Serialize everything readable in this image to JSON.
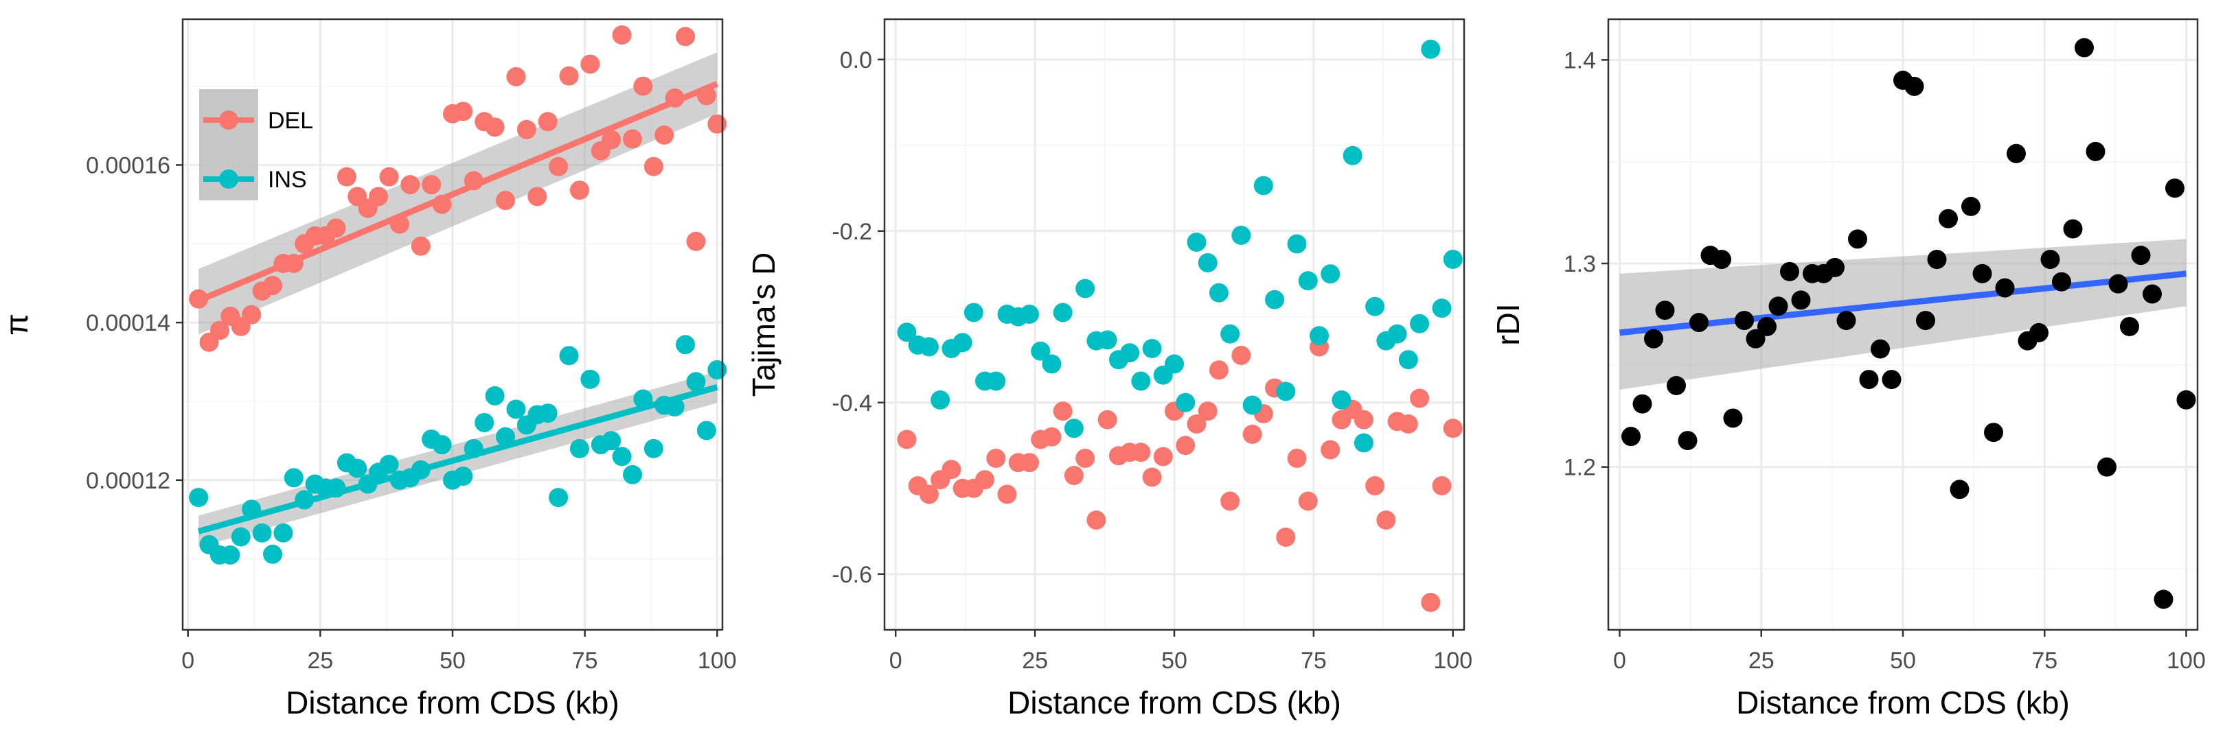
{
  "chart_data": [
    {
      "type": "scatter",
      "xlabel": "Distance from CDS (kb)",
      "ylabel": "π",
      "xlim": [
        -1,
        101
      ],
      "ylim": [
        0.000101,
        0.0001785
      ],
      "x_ticks": [
        0,
        25,
        50,
        75,
        100
      ],
      "x_tick_labels": [
        "0",
        "25",
        "50",
        "75",
        "100"
      ],
      "y_ticks": [
        0.00012,
        0.00014,
        0.00016
      ],
      "y_tick_labels": [
        "0.00012",
        "0.00014",
        "0.00016"
      ],
      "grid": true,
      "legend_position": "top-left",
      "legend": [
        {
          "label": "DEL",
          "color": "#F8766D"
        },
        {
          "label": "INS",
          "color": "#00BFC4"
        }
      ],
      "series": [
        {
          "name": "DEL",
          "color": "#F8766D",
          "x": [
            2,
            4,
            6,
            8,
            10,
            12,
            14,
            16,
            18,
            20,
            22,
            24,
            26,
            28,
            30,
            32,
            34,
            36,
            38,
            40,
            42,
            44,
            46,
            48,
            50,
            52,
            54,
            56,
            58,
            60,
            62,
            64,
            66,
            68,
            70,
            72,
            74,
            76,
            78,
            80,
            82,
            84,
            86,
            88,
            90,
            92,
            94,
            96,
            98,
            100
          ],
          "y": [
            0.000143,
            0.0001375,
            0.000139,
            0.0001408,
            0.0001395,
            0.000141,
            0.000144,
            0.0001447,
            0.0001475,
            0.0001475,
            0.00015,
            0.000151,
            0.000151,
            0.000152,
            0.0001585,
            0.000156,
            0.0001545,
            0.000156,
            0.0001585,
            0.0001525,
            0.0001575,
            0.0001497,
            0.0001575,
            0.000155,
            0.0001665,
            0.0001668,
            0.000158,
            0.0001655,
            0.0001648,
            0.0001555,
            0.0001712,
            0.0001645,
            0.000156,
            0.0001655,
            0.0001598,
            0.0001713,
            0.0001568,
            0.0001728,
            0.0001618,
            0.0001632,
            0.0001765,
            0.0001633,
            0.00017,
            0.0001598,
            0.0001638,
            0.0001685,
            0.0001763,
            0.0001503,
            0.0001688,
            0.0001652
          ],
          "trend": {
            "x": [
              2,
              100
            ],
            "y": [
              0.0001428,
              0.0001703
            ],
            "ci_low": [
              0.0001385,
              0.0001665
            ],
            "ci_high": [
              0.0001468,
              0.0001743
            ]
          }
        },
        {
          "name": "INS",
          "color": "#00BFC4",
          "x": [
            2,
            4,
            6,
            8,
            10,
            12,
            14,
            16,
            18,
            20,
            22,
            24,
            26,
            28,
            30,
            32,
            34,
            36,
            38,
            40,
            42,
            44,
            46,
            48,
            50,
            52,
            54,
            56,
            58,
            60,
            62,
            64,
            66,
            68,
            70,
            72,
            74,
            76,
            78,
            80,
            82,
            84,
            86,
            88,
            90,
            92,
            94,
            96,
            98,
            100
          ],
          "y": [
            0.0001178,
            0.0001118,
            0.0001105,
            0.0001105,
            0.0001128,
            0.0001163,
            0.0001133,
            0.0001106,
            0.0001133,
            0.0001203,
            0.0001175,
            0.0001195,
            0.000119,
            0.000119,
            0.0001222,
            0.0001215,
            0.0001195,
            0.000121,
            0.000122,
            0.00012,
            0.0001203,
            0.0001213,
            0.0001252,
            0.0001245,
            0.00012,
            0.0001205,
            0.000124,
            0.0001273,
            0.0001307,
            0.0001255,
            0.000129,
            0.000127,
            0.0001283,
            0.0001285,
            0.0001178,
            0.0001358,
            0.000124,
            0.0001328,
            0.0001245,
            0.000125,
            0.000123,
            0.0001207,
            0.0001303,
            0.000124,
            0.0001295,
            0.0001293,
            0.0001372,
            0.0001325,
            0.0001263,
            0.000134
          ],
          "trend": {
            "x": [
              2,
              100
            ],
            "y": [
              0.0001135,
              0.0001318
            ],
            "ci_low": [
              0.0001115,
              0.0001298
            ],
            "ci_high": [
              0.0001155,
              0.0001338
            ]
          }
        }
      ]
    },
    {
      "type": "scatter",
      "xlabel": "Distance from CDS (kb)",
      "ylabel": "Tajima's D",
      "xlim": [
        -2,
        102
      ],
      "ylim": [
        -0.665,
        0.047
      ],
      "x_ticks": [
        0,
        25,
        50,
        75,
        100
      ],
      "x_tick_labels": [
        "0",
        "25",
        "50",
        "75",
        "100"
      ],
      "y_ticks": [
        0.0,
        -0.2,
        -0.4,
        -0.6
      ],
      "y_tick_labels": [
        "0.0",
        "-0.2",
        "-0.4",
        "-0.6"
      ],
      "grid": true,
      "series": [
        {
          "name": "DEL",
          "color": "#F8766D",
          "x": [
            2,
            4,
            6,
            8,
            10,
            12,
            14,
            16,
            18,
            20,
            22,
            24,
            26,
            28,
            30,
            32,
            34,
            36,
            38,
            40,
            42,
            44,
            46,
            48,
            50,
            52,
            54,
            56,
            58,
            60,
            62,
            64,
            66,
            68,
            70,
            72,
            74,
            76,
            78,
            80,
            82,
            84,
            86,
            88,
            90,
            92,
            94,
            96,
            98,
            100
          ],
          "y": [
            -0.443,
            -0.497,
            -0.507,
            -0.49,
            -0.478,
            -0.5,
            -0.5,
            -0.49,
            -0.465,
            -0.507,
            -0.47,
            -0.47,
            -0.443,
            -0.44,
            -0.41,
            -0.485,
            -0.465,
            -0.537,
            -0.42,
            -0.462,
            -0.458,
            -0.458,
            -0.487,
            -0.463,
            -0.41,
            -0.45,
            -0.425,
            -0.41,
            -0.362,
            -0.515,
            -0.345,
            -0.437,
            -0.413,
            -0.383,
            -0.557,
            -0.465,
            -0.515,
            -0.335,
            -0.455,
            -0.42,
            -0.408,
            -0.42,
            -0.497,
            -0.537,
            -0.422,
            -0.425,
            -0.395,
            -0.633,
            -0.497,
            -0.43
          ]
        },
        {
          "name": "INS",
          "color": "#00BFC4",
          "x": [
            2,
            4,
            6,
            8,
            10,
            12,
            14,
            16,
            18,
            20,
            22,
            24,
            26,
            28,
            30,
            32,
            34,
            36,
            38,
            40,
            42,
            44,
            46,
            48,
            50,
            52,
            54,
            56,
            58,
            60,
            62,
            64,
            66,
            68,
            70,
            72,
            74,
            76,
            78,
            80,
            82,
            84,
            86,
            88,
            90,
            92,
            94,
            96,
            98,
            100
          ],
          "y": [
            -0.318,
            -0.333,
            -0.335,
            -0.397,
            -0.337,
            -0.33,
            -0.295,
            -0.375,
            -0.375,
            -0.297,
            -0.3,
            -0.297,
            -0.34,
            -0.355,
            -0.295,
            -0.43,
            -0.267,
            -0.328,
            -0.327,
            -0.35,
            -0.342,
            -0.375,
            -0.337,
            -0.368,
            -0.355,
            -0.4,
            -0.213,
            -0.237,
            -0.272,
            -0.32,
            -0.205,
            -0.403,
            -0.147,
            -0.28,
            -0.387,
            -0.215,
            -0.258,
            -0.322,
            -0.25,
            -0.397,
            -0.112,
            -0.447,
            -0.288,
            -0.328,
            -0.32,
            -0.35,
            -0.308,
            0.012,
            -0.29,
            -0.233
          ]
        }
      ]
    },
    {
      "type": "scatter",
      "xlabel": "Distance from CDS (kb)",
      "ylabel": "rDI",
      "xlim": [
        -2,
        102
      ],
      "ylim": [
        1.12,
        1.42
      ],
      "x_ticks": [
        0,
        25,
        50,
        75,
        100
      ],
      "x_tick_labels": [
        "0",
        "25",
        "50",
        "75",
        "100"
      ],
      "y_ticks": [
        1.2,
        1.3,
        1.4
      ],
      "y_tick_labels": [
        "1.2",
        "1.3",
        "1.4"
      ],
      "grid": true,
      "series": [
        {
          "name": "",
          "color": "#000000",
          "x": [
            2,
            4,
            6,
            8,
            10,
            12,
            14,
            16,
            18,
            20,
            22,
            24,
            26,
            28,
            30,
            32,
            34,
            36,
            38,
            40,
            42,
            44,
            46,
            48,
            50,
            52,
            54,
            56,
            58,
            60,
            62,
            64,
            66,
            68,
            70,
            72,
            74,
            76,
            78,
            80,
            82,
            84,
            86,
            88,
            90,
            92,
            94,
            96,
            98,
            100
          ],
          "y": [
            1.215,
            1.231,
            1.263,
            1.277,
            1.24,
            1.213,
            1.271,
            1.304,
            1.302,
            1.224,
            1.272,
            1.263,
            1.269,
            1.279,
            1.296,
            1.282,
            1.295,
            1.295,
            1.298,
            1.272,
            1.312,
            1.243,
            1.258,
            1.243,
            1.39,
            1.387,
            1.272,
            1.302,
            1.322,
            1.189,
            1.328,
            1.295,
            1.217,
            1.288,
            1.354,
            1.262,
            1.266,
            1.302,
            1.291,
            1.317,
            1.406,
            1.355,
            1.2,
            1.29,
            1.269,
            1.304,
            1.285,
            1.135,
            1.337,
            1.233
          ],
          "trend": {
            "x": [
              0,
              100
            ],
            "y": [
              1.266,
              1.295
            ],
            "ci_low": [
              1.238,
              1.279
            ],
            "ci_high": [
              1.295,
              1.312
            ]
          }
        }
      ]
    }
  ]
}
